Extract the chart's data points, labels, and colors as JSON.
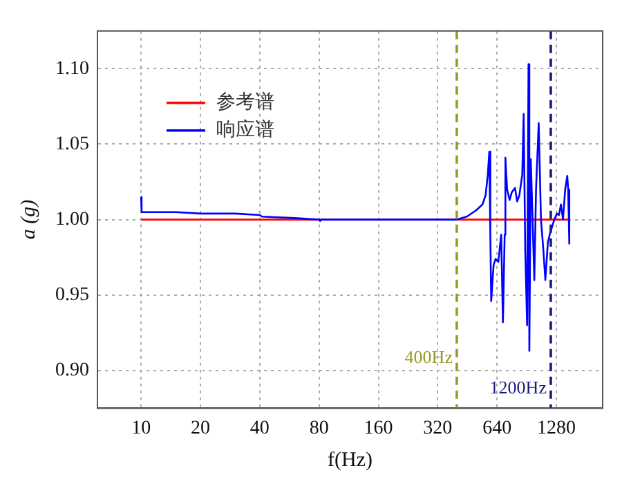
{
  "chart_data": {
    "type": "line",
    "xlabel": "f(Hz)",
    "ylabel": "a (g)",
    "log": "x",
    "xlim": [
      6,
      2200
    ],
    "xticks": [
      10,
      20,
      40,
      80,
      160,
      320,
      640,
      1280
    ],
    "ylim": [
      0.875,
      1.125
    ],
    "yticks": [
      {
        "value": 0.9,
        "label": "0.90"
      },
      {
        "value": 0.95,
        "label": "0.95"
      },
      {
        "value": 1.0,
        "label": "1.00"
      },
      {
        "value": 1.05,
        "label": "1.05"
      },
      {
        "value": 1.1,
        "label": "1.10"
      }
    ],
    "grid": true,
    "legend": "top left",
    "line_style": "solid",
    "marker": "none",
    "series": [
      {
        "name": "参考谱",
        "color": "#ff0000",
        "x": [
          10,
          1490
        ],
        "values": [
          1.0,
          1.0
        ]
      },
      {
        "name": "响应谱",
        "color": "#0000ff",
        "x": [
          10,
          10.05,
          15,
          20,
          30,
          40,
          41,
          60,
          80,
          81,
          82,
          160,
          320,
          400,
          450,
          500,
          540,
          560,
          575,
          585,
          592,
          598,
          615,
          630,
          650,
          672,
          686,
          700,
          706,
          720,
          742,
          760,
          790,
          810,
          831,
          860,
          874,
          890,
          910,
          925,
          934,
          950,
          970,
          990,
          1010,
          1042,
          1070,
          1100,
          1126,
          1160,
          1190,
          1250,
          1290,
          1320,
          1351,
          1384,
          1420,
          1455,
          1470,
          1490
        ],
        "values": [
          1.015,
          1.005,
          1.005,
          1.004,
          1.004,
          1.003,
          1.002,
          1.001,
          1.0,
          0.999,
          1.0,
          1.0,
          1.0,
          1.0,
          1.002,
          1.006,
          1.01,
          1.016,
          1.03,
          1.045,
          0.99,
          0.946,
          0.97,
          0.974,
          0.972,
          0.99,
          0.932,
          0.99,
          1.041,
          1.02,
          1.013,
          1.018,
          1.021,
          1.012,
          1.016,
          1.03,
          1.07,
          0.98,
          0.93,
          1.103,
          0.913,
          1.04,
          1.0,
          0.96,
          1.02,
          1.064,
          1.0,
          0.98,
          0.96,
          0.985,
          0.991,
          1.0,
          1.004,
          1.003,
          1.01,
          1.0,
          1.02,
          1.029,
          1.02,
          0.984
        ]
      }
    ],
    "ref_lines": [
      {
        "axis": "x",
        "value": 400,
        "label": "400Hz",
        "color": "#999922",
        "line_style": "dashed"
      },
      {
        "axis": "x",
        "value": 1200,
        "label": "1200Hz",
        "color": "#1a1a80",
        "line_style": "dashed"
      }
    ]
  }
}
